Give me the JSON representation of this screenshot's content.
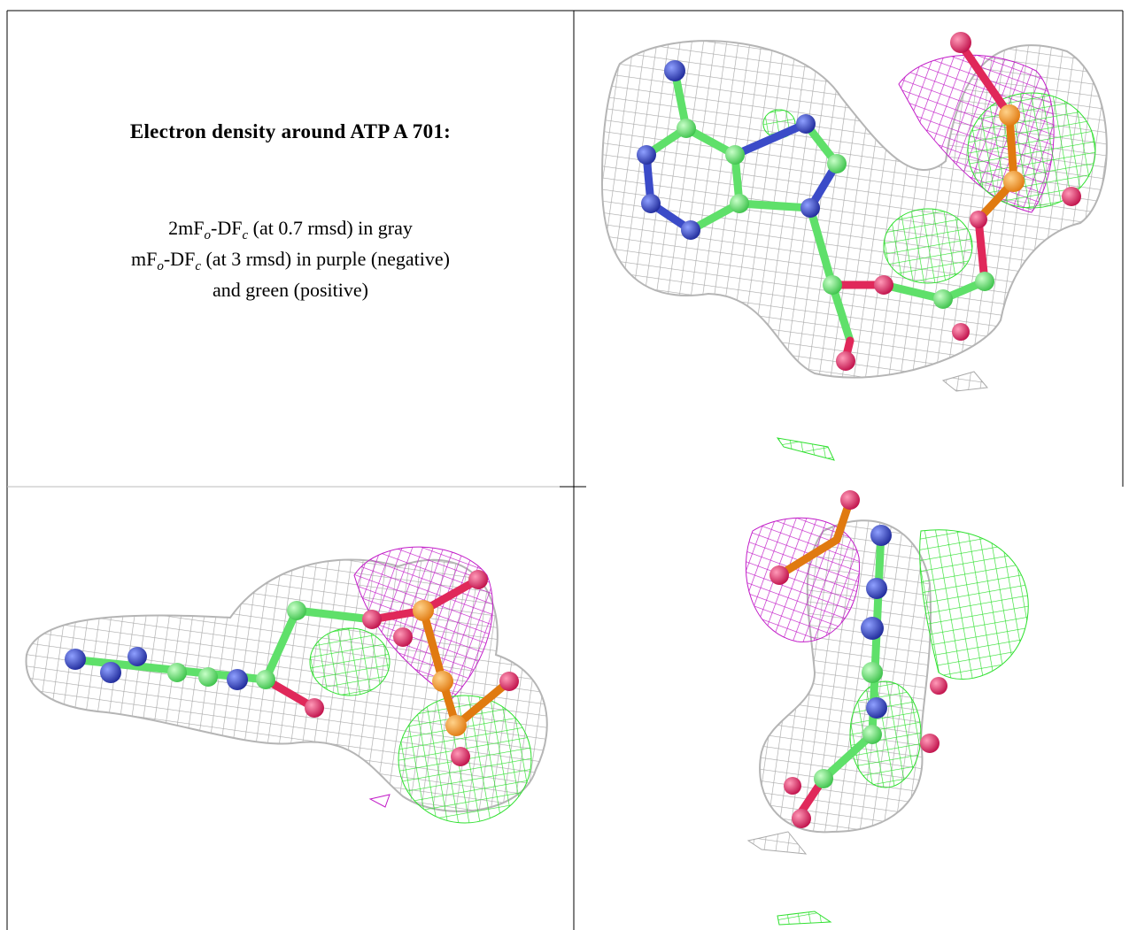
{
  "figure": {
    "title": "Electron density around ATP A 701:",
    "legend_lines": [
      [
        "2mF",
        "o",
        "-DF",
        "c",
        " (at 0.7 rmsd) in gray"
      ],
      [
        "mF",
        "o",
        "-DF",
        "c",
        " (at 3 rmsd) in purple (negative)"
      ],
      [
        "and green (positive)"
      ]
    ]
  }
}
